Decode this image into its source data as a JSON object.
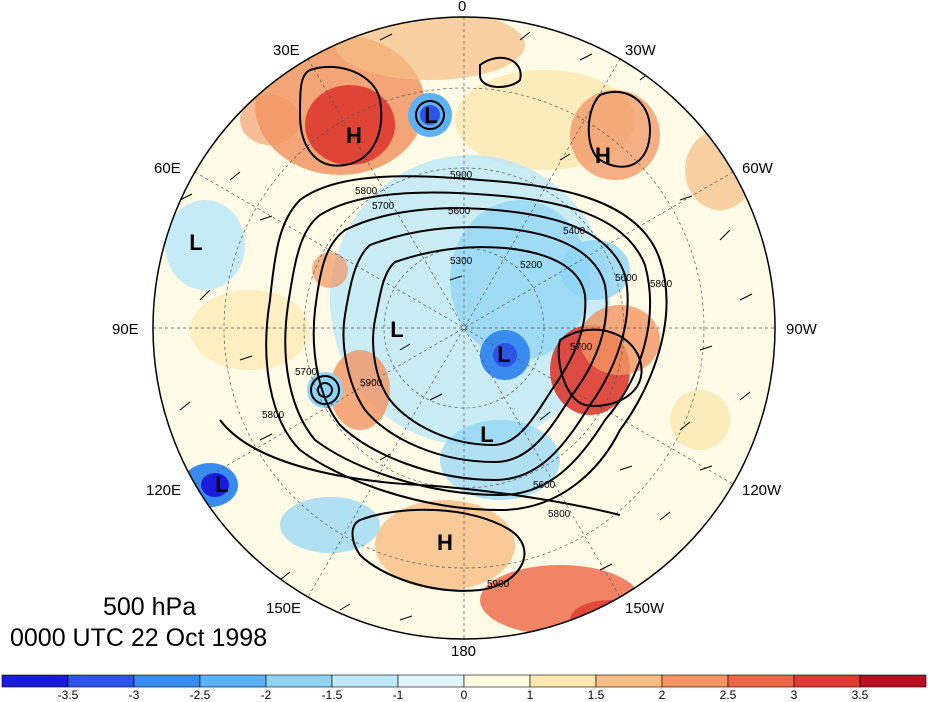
{
  "title": {
    "level": "500 hPa",
    "datetime": "0000 UTC 22 Oct 1998"
  },
  "longitude_labels": {
    "lon_0": "0",
    "lon_30w": "30W",
    "lon_60w": "60W",
    "lon_90w": "90W",
    "lon_120w": "120W",
    "lon_150w": "150W",
    "lon_180": "180",
    "lon_150e": "150E",
    "lon_120e": "120E",
    "lon_90e": "90E",
    "lon_60e": "60E",
    "lon_30e": "30E"
  },
  "pressure_centers": [
    {
      "id": "high-barents",
      "label": "H",
      "lon_region": "30E"
    },
    {
      "id": "low-norwegian",
      "label": "L",
      "lon_region": "0-15E"
    },
    {
      "id": "high-atlantic",
      "label": "H",
      "lon_region": "30W-45W"
    },
    {
      "id": "low-central-asia",
      "label": "L",
      "lon_region": "70E"
    },
    {
      "id": "low-pole",
      "label": "L",
      "lon_region": "polar"
    },
    {
      "id": "low-canada",
      "label": "L",
      "lon_region": "100W"
    },
    {
      "id": "low-siberia",
      "label": "L",
      "lon_region": "150E-180"
    },
    {
      "id": "low-japan",
      "label": "L",
      "lon_region": "120E"
    },
    {
      "id": "high-pacific",
      "label": "H",
      "lon_region": "180"
    }
  ],
  "contour_labels": [
    "5800",
    "5900",
    "5700",
    "5600",
    "5300",
    "5400",
    "5200",
    "5800",
    "5700",
    "5600",
    "5800",
    "5900",
    "5700",
    "5900",
    "5800",
    "5600"
  ],
  "colorbar": {
    "colors": [
      "#1a1adb",
      "#2d54e8",
      "#3a8bf0",
      "#5db2f5",
      "#8fd4f7",
      "#bfe9f7",
      "#e1f4fb",
      "#fffbe3",
      "#fde8b0",
      "#f7bd83",
      "#f29563",
      "#ec6745",
      "#dd3a30",
      "#b80f22"
    ],
    "labels": [
      "-3.5",
      "-3",
      "-2.5",
      "-2",
      "-1.5",
      "-1",
      "0",
      "1",
      "1.5",
      "2",
      "2.5",
      "3",
      "3.5"
    ]
  }
}
